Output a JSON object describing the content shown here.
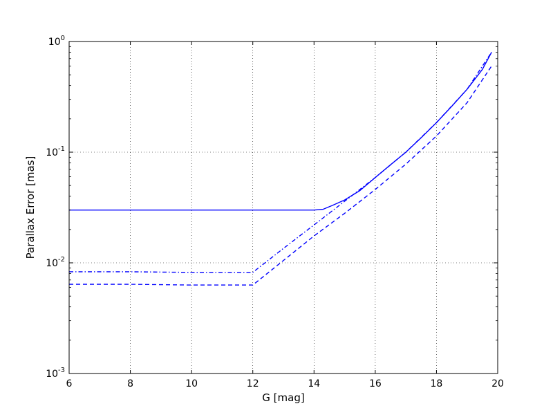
{
  "chart_data": {
    "type": "line",
    "xlabel": "G [mag]",
    "ylabel": "Parallax Error [mas]",
    "xlim": [
      6,
      20
    ],
    "ylim": [
      0.001,
      1
    ],
    "yscale": "log",
    "grid": true,
    "line_color": "#0000ff",
    "x_ticks": [
      6,
      8,
      10,
      12,
      14,
      16,
      18,
      20
    ],
    "x_tick_labels": [
      "6",
      "8",
      "10",
      "12",
      "14",
      "16",
      "18",
      "20"
    ],
    "y_ticks": [
      {
        "value": 1,
        "base": "10",
        "exp": "0"
      },
      {
        "value": 0.1,
        "base": "10",
        "exp": "-1"
      },
      {
        "value": 0.01,
        "base": "10",
        "exp": "-2"
      },
      {
        "value": 0.001,
        "base": "10",
        "exp": "-3"
      }
    ],
    "series": [
      {
        "style": "solid",
        "x": [
          6,
          8,
          10,
          12,
          13,
          14,
          14.3,
          14.6,
          15,
          15.5,
          16,
          16.5,
          17,
          17.5,
          18,
          18.5,
          19,
          19.5,
          19.8
        ],
        "y": [
          0.03,
          0.03,
          0.03,
          0.03,
          0.03,
          0.03,
          0.0305,
          0.033,
          0.037,
          0.045,
          0.059,
          0.077,
          0.1,
          0.135,
          0.185,
          0.26,
          0.37,
          0.56,
          0.8
        ]
      },
      {
        "style": "dashdot",
        "x": [
          6,
          8,
          10,
          12,
          13,
          14,
          15,
          16,
          17,
          18,
          19,
          19.8
        ],
        "y": [
          0.0083,
          0.0083,
          0.0082,
          0.0082,
          0.0135,
          0.022,
          0.036,
          0.059,
          0.1,
          0.185,
          0.37,
          0.8
        ]
      },
      {
        "style": "dashed",
        "x": [
          6,
          8,
          10,
          12,
          13,
          14,
          15,
          16,
          17,
          18,
          19,
          19.8
        ],
        "y": [
          0.0064,
          0.0064,
          0.0063,
          0.0063,
          0.0105,
          0.0175,
          0.028,
          0.046,
          0.078,
          0.14,
          0.28,
          0.6
        ]
      }
    ]
  }
}
